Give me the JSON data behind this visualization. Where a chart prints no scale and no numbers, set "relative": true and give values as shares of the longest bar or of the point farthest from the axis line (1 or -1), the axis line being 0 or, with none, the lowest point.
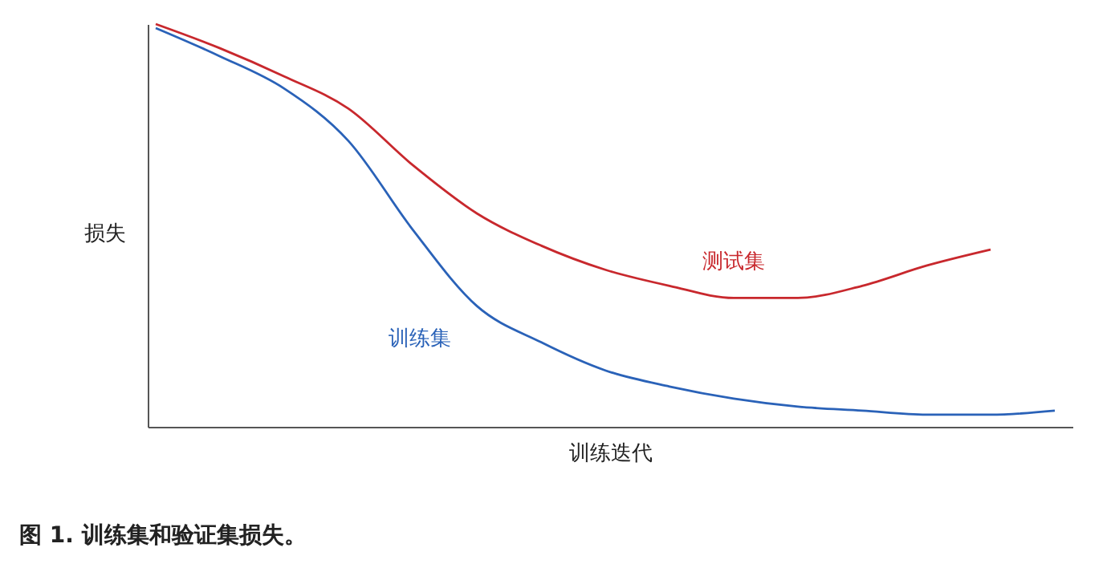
{
  "chart_data": {
    "type": "line",
    "relative": true,
    "xlabel": "训练迭代",
    "ylabel": "损失",
    "categories": [
      null,
      null,
      null,
      null,
      null,
      null,
      null,
      null,
      null,
      null,
      null,
      null,
      null,
      null,
      null
    ],
    "series": [
      {
        "name": "训练集",
        "color": "#2a62b8",
        "values": [
          0.99,
          0.92,
          0.84,
          0.71,
          0.49,
          0.3,
          0.21,
          0.14,
          0.1,
          0.07,
          0.05,
          0.04,
          0.03,
          0.03,
          0.04
        ]
      },
      {
        "name": "测试集",
        "color": "#c8282d",
        "values": [
          1.0,
          0.94,
          0.87,
          0.79,
          0.65,
          0.53,
          0.45,
          0.39,
          0.35,
          0.32,
          0.32,
          0.35,
          0.4,
          0.44,
          null
        ]
      }
    ],
    "annotations": [
      "图 1. 训练集和验证集损失。"
    ],
    "grid": false,
    "marker": "none",
    "line_style": "solid"
  }
}
